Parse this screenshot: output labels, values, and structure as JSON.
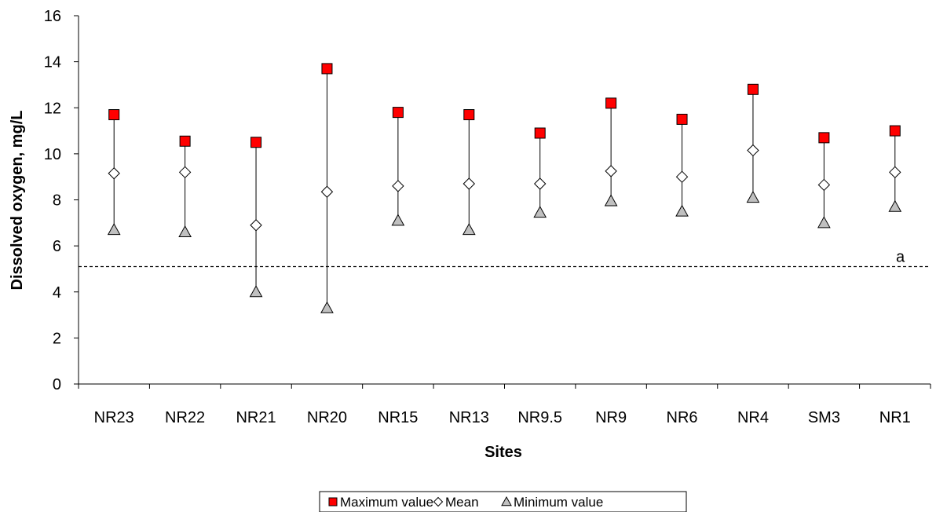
{
  "chart_data": {
    "type": "scatter",
    "title": "",
    "xlabel": "Sites",
    "ylabel": "Dissolved oxygen, mg/L",
    "ylim": [
      0,
      16
    ],
    "yticks": [
      "0",
      "2",
      "4",
      "6",
      "8",
      "10",
      "12",
      "14",
      "16"
    ],
    "categories": [
      "NR23",
      "NR22",
      "NR21",
      "NR20",
      "NR15",
      "NR13",
      "NR9.5",
      "NR9",
      "NR6",
      "NR4",
      "SM3",
      "NR1"
    ],
    "series": [
      {
        "name": "Maximum value",
        "marker": "square",
        "color": "#ff0000",
        "values": [
          11.7,
          10.55,
          10.5,
          13.7,
          11.8,
          11.7,
          10.9,
          12.2,
          11.5,
          12.8,
          10.7,
          11.0
        ]
      },
      {
        "name": "Mean",
        "marker": "diamond",
        "color": "#ffffff",
        "values": [
          9.15,
          9.2,
          6.9,
          8.35,
          8.6,
          8.7,
          8.7,
          9.25,
          9.0,
          10.15,
          8.65,
          9.2
        ]
      },
      {
        "name": "Minimum value",
        "marker": "triangle",
        "color": "#c0c0c0",
        "values": [
          6.7,
          6.6,
          4.0,
          3.3,
          7.1,
          6.7,
          7.45,
          7.95,
          7.5,
          8.1,
          7.0,
          7.7
        ]
      }
    ],
    "reference_line": {
      "label": "a",
      "value": 5.1,
      "style": "dashed"
    },
    "grid": false,
    "legend_position": "bottom"
  }
}
